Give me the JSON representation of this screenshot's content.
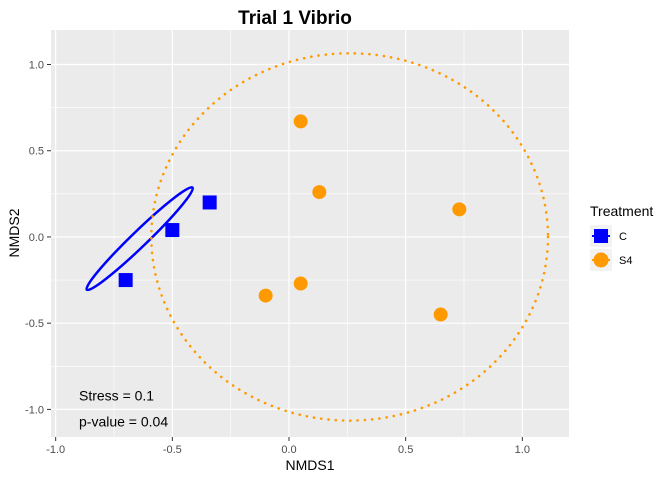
{
  "chart_data": {
    "type": "scatter",
    "title": "Trial 1 Vibrio",
    "xlabel": "NMDS1",
    "ylabel": "NMDS2",
    "xlim": [
      -1.02,
      1.2
    ],
    "ylim": [
      -1.16,
      1.2
    ],
    "x_ticks": [
      -1.0,
      -0.5,
      0.0,
      0.5,
      1.0
    ],
    "x_tick_labels": [
      "-1.0",
      "-0.5",
      "0.0",
      "0.5",
      "1.0"
    ],
    "y_ticks": [
      -1.0,
      -0.5,
      0.0,
      0.5,
      1.0
    ],
    "y_tick_labels": [
      "-1.0",
      "-0.5",
      "0.0",
      "0.5",
      "1.0"
    ],
    "grid": true,
    "legend": {
      "title": "Treatment",
      "position": "right",
      "entries": [
        {
          "label": "C",
          "shape": "square",
          "color": "#0000ff"
        },
        {
          "label": "S4",
          "shape": "circle",
          "color": "#ff9900"
        }
      ]
    },
    "series": [
      {
        "name": "C",
        "color": "#0000ff",
        "marker": "square",
        "points": [
          {
            "x": -0.7,
            "y": -0.25
          },
          {
            "x": -0.5,
            "y": 0.04
          },
          {
            "x": -0.34,
            "y": 0.2
          }
        ],
        "ellipse": {
          "style": "solid",
          "center": [
            -0.64,
            -0.01
          ],
          "rx": 0.315,
          "ry": 0.045,
          "angle_deg": -44
        }
      },
      {
        "name": "S4",
        "color": "#ff9900",
        "marker": "circle",
        "points": [
          {
            "x": 0.05,
            "y": 0.67
          },
          {
            "x": 0.13,
            "y": 0.26
          },
          {
            "x": 0.73,
            "y": 0.16
          },
          {
            "x": 0.05,
            "y": -0.27
          },
          {
            "x": -0.1,
            "y": -0.34
          },
          {
            "x": 0.65,
            "y": -0.45
          }
        ],
        "ellipse": {
          "style": "dotted",
          "center": [
            0.26,
            0.0
          ],
          "rx": 0.85,
          "ry": 1.065,
          "angle_deg": 0
        }
      }
    ],
    "annotations": [
      {
        "text": "Stress =  0.1",
        "x": -0.9,
        "y": -0.92
      },
      {
        "text": "p-value =  0.04",
        "x": -0.9,
        "y": -1.07
      }
    ]
  }
}
